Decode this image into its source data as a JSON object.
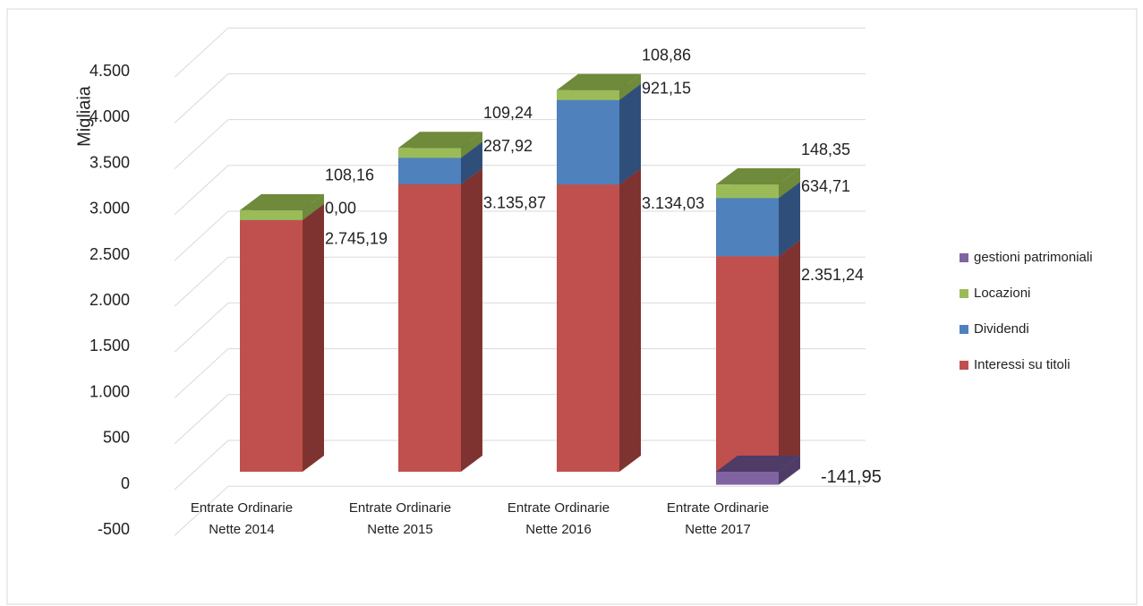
{
  "chart_data": {
    "type": "bar3d_stacked",
    "y_axis_label": "Migliaia",
    "categories": [
      "Entrate Ordinarie Nette 2014",
      "Entrate Ordinarie Nette 2015",
      "Entrate Ordinarie Nette 2016",
      "Entrate Ordinarie Nette 2017"
    ],
    "series": [
      {
        "name": "Interessi su titoli",
        "color": "#c0504d",
        "side_color": "#7f3330",
        "values": [
          2745.19,
          3135.87,
          3134.03,
          2351.24
        ],
        "value_labels": [
          "2.745,19",
          "3.135,87",
          "3.134,03",
          "2.351,24"
        ]
      },
      {
        "name": "Dividendi",
        "color": "#4f81bd",
        "side_color": "#2f4f7a",
        "values": [
          0.0,
          287.92,
          921.15,
          634.71
        ],
        "value_labels": [
          "0,00",
          "287,92",
          "921,15",
          "634,71"
        ]
      },
      {
        "name": "Locazioni",
        "color": "#9bbb59",
        "side_color": "#6e8a3a",
        "values": [
          108.16,
          109.24,
          108.86,
          148.35
        ],
        "value_labels": [
          "108,16",
          "109,24",
          "108,86",
          "148,35"
        ]
      },
      {
        "name": "gestioni patrimoniali",
        "color": "#8064a2",
        "side_color": "#4e3b66",
        "values": [
          null,
          null,
          null,
          -141.95
        ],
        "value_labels": [
          null,
          null,
          null,
          "-141,95"
        ]
      }
    ],
    "ylim": [
      -500,
      4500
    ],
    "yticks": [
      {
        "value": -500,
        "label": "-500"
      },
      0,
      500,
      {
        "value": 1000,
        "label": "1.000"
      },
      {
        "value": 1500,
        "label": "1.500"
      },
      {
        "value": 2000,
        "label": "2.000"
      },
      {
        "value": 2500,
        "label": "2.500"
      },
      {
        "value": 3000,
        "label": "3.000"
      },
      {
        "value": 3500,
        "label": "3.500"
      },
      {
        "value": 4000,
        "label": "4.000"
      },
      {
        "value": 4500,
        "label": "4.500"
      }
    ],
    "grid": true,
    "legend": "right"
  }
}
